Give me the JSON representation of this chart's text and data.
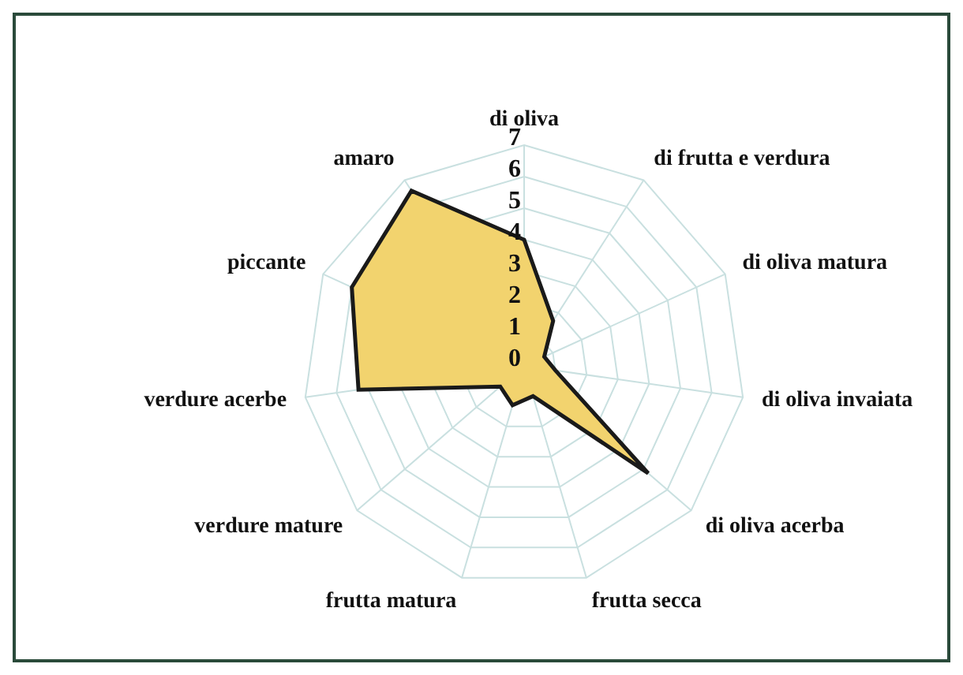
{
  "chart_data": {
    "type": "radar",
    "categories": [
      "di oliva",
      "di frutta e verdura",
      "di oliva matura",
      "di oliva invaiata",
      "di oliva acerba",
      "frutta secca",
      "frutta matura",
      "verdure mature",
      "verdure acerbe",
      "piccante",
      "amaro"
    ],
    "series": [
      {
        "color": "#f2d36e",
        "values": [
          4,
          1.7,
          0.7,
          1,
          5.2,
          1,
          1.3,
          1,
          5.3,
          6,
          6.6
        ]
      }
    ],
    "ylim": [
      0,
      7
    ],
    "yticks": [
      0,
      1,
      2,
      3,
      4,
      5,
      6,
      7
    ],
    "grid": true
  }
}
